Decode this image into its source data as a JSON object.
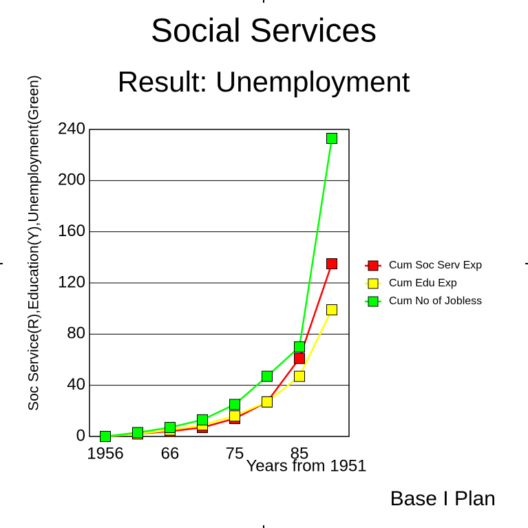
{
  "chart_data": {
    "type": "line",
    "title": "Social Services",
    "subtitle": "Result: Unemployment",
    "y_label": "Soc Service(R),Education(Y),Unemployment(Green)",
    "x_label": "Years from 1951",
    "annotation": "Base I Plan",
    "categories": [
      "1956",
      null,
      "66",
      null,
      "75",
      null,
      "85",
      null
    ],
    "series": [
      {
        "name": "Cum Soc Serv Exp",
        "color": "#ff0000",
        "values": [
          0,
          2,
          4,
          7,
          14,
          27,
          61,
          135
        ]
      },
      {
        "name": "Cum Edu Exp",
        "color": "#ffff00",
        "values": [
          0,
          2,
          5,
          9,
          16,
          27,
          47,
          99
        ]
      },
      {
        "name": "Cum No of Jobless",
        "color": "#00ff00",
        "values": [
          0,
          3,
          7,
          13,
          25,
          47,
          70,
          233
        ]
      }
    ],
    "ylim": [
      0,
      240
    ],
    "yticks": [
      0,
      40,
      80,
      120,
      160,
      200,
      240
    ],
    "grid": true,
    "legend": "right"
  }
}
